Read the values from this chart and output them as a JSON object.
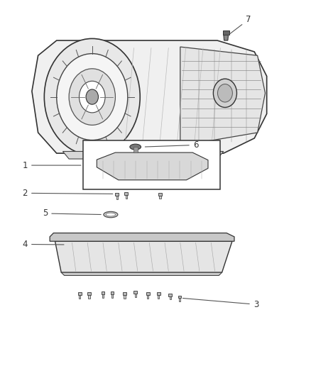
{
  "title": "",
  "background_color": "#ffffff",
  "fig_width": 4.38,
  "fig_height": 5.33,
  "dpi": 100,
  "label_color": "#333333",
  "line_color": "#555555",
  "label_fontsize": 8.5
}
